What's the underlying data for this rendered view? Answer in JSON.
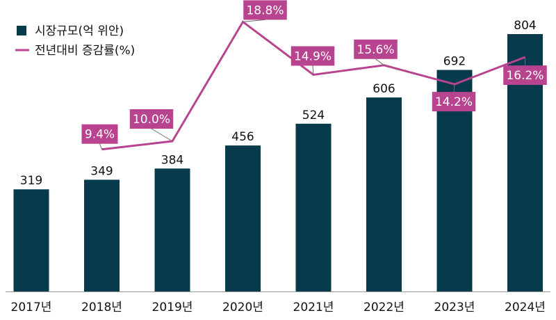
{
  "chart_data": {
    "type": "bar",
    "categories": [
      "2017년",
      "2018년",
      "2019년",
      "2020년",
      "2021년",
      "2022년",
      "2023년",
      "2024년"
    ],
    "series": [
      {
        "name": "시장규모(억 위안)",
        "type": "bar",
        "values": [
          319,
          349,
          384,
          456,
          524,
          606,
          692,
          804
        ],
        "labels": [
          "319",
          "349",
          "384",
          "456",
          "524",
          "606",
          "692",
          "804"
        ],
        "color": "#073b4c"
      },
      {
        "name": "전년대비 증감률(%)",
        "type": "line",
        "values": [
          null,
          9.4,
          10.0,
          18.8,
          14.9,
          15.6,
          14.2,
          16.2
        ],
        "labels": [
          "",
          "9.4%",
          "10.0%",
          "18.8%",
          "14.9%",
          "15.6%",
          "14.2%",
          "16.2%"
        ],
        "color": "#b8448f"
      }
    ],
    "ylim": [
      0,
      830
    ],
    "y2lim": [
      0,
      20
    ],
    "grid": false,
    "legend": "top-left"
  }
}
